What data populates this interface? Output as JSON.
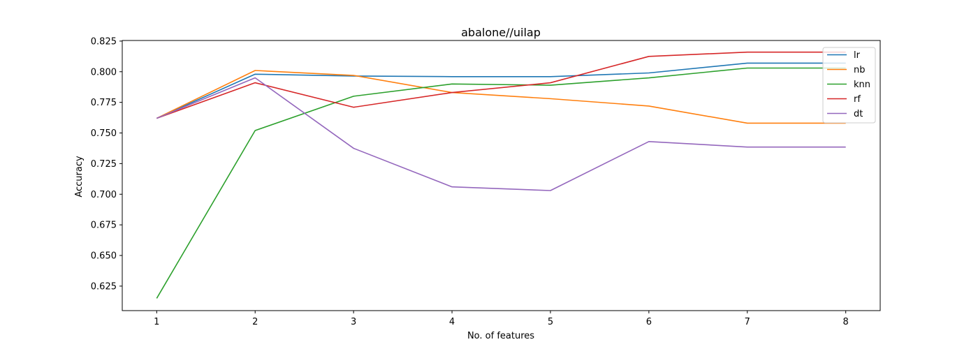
{
  "chart_data": {
    "type": "line",
    "title": "abalone//uilap",
    "xlabel": "No. of features",
    "ylabel": "Accuracy",
    "x": [
      1,
      2,
      3,
      4,
      5,
      6,
      7,
      8
    ],
    "xlim": [
      0.65,
      8.35
    ],
    "ylim": [
      0.605,
      0.8255
    ],
    "yticks": [
      0.625,
      0.65,
      0.675,
      0.7,
      0.725,
      0.75,
      0.775,
      0.8,
      0.825
    ],
    "ytick_labels": [
      "0.625",
      "0.650",
      "0.675",
      "0.700",
      "0.725",
      "0.750",
      "0.775",
      "0.800",
      "0.825"
    ],
    "xticks": [
      1,
      2,
      3,
      4,
      5,
      6,
      7,
      8
    ],
    "xtick_labels": [
      "1",
      "2",
      "3",
      "4",
      "5",
      "6",
      "7",
      "8"
    ],
    "grid": false,
    "legend_position": "top-right",
    "series": [
      {
        "name": "lr",
        "color": "#1f77b4",
        "values": [
          0.762,
          0.798,
          0.7965,
          0.796,
          0.796,
          0.799,
          0.807,
          0.807
        ]
      },
      {
        "name": "nb",
        "color": "#ff7f0e",
        "values": [
          0.762,
          0.801,
          0.797,
          0.783,
          0.778,
          0.772,
          0.758,
          0.758
        ]
      },
      {
        "name": "knn",
        "color": "#2ca02c",
        "values": [
          0.615,
          0.752,
          0.78,
          0.79,
          0.789,
          0.795,
          0.803,
          0.803
        ]
      },
      {
        "name": "rf",
        "color": "#d62728",
        "values": [
          0.762,
          0.791,
          0.771,
          0.783,
          0.791,
          0.8125,
          0.816,
          0.816
        ]
      },
      {
        "name": "dt",
        "color": "#9467bd",
        "values": [
          0.762,
          0.795,
          0.7375,
          0.706,
          0.703,
          0.743,
          0.7385,
          0.7385
        ]
      }
    ]
  }
}
